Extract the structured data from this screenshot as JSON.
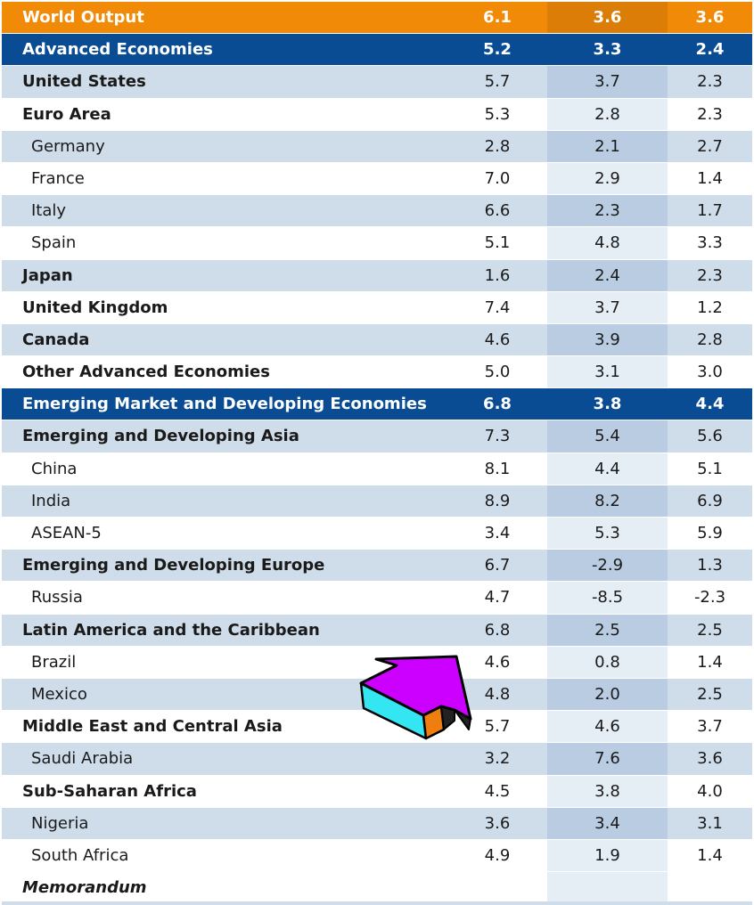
{
  "table": {
    "rows": [
      {
        "name": "World Output",
        "v1": "6.1",
        "v2": "3.6",
        "v3": "3.6",
        "kind": "world"
      },
      {
        "name": "Advanced Economies",
        "v1": "5.2",
        "v2": "3.3",
        "v3": "2.4",
        "kind": "region"
      },
      {
        "name": "United States",
        "v1": "5.7",
        "v2": "3.7",
        "v3": "2.3",
        "kind": "group shade"
      },
      {
        "name": "Euro Area",
        "v1": "5.3",
        "v2": "2.8",
        "v3": "2.3",
        "kind": "group plain"
      },
      {
        "name": "Germany",
        "v1": "2.8",
        "v2": "2.1",
        "v3": "2.7",
        "kind": "indent shade"
      },
      {
        "name": "France",
        "v1": "7.0",
        "v2": "2.9",
        "v3": "1.4",
        "kind": "indent plain"
      },
      {
        "name": "Italy",
        "v1": "6.6",
        "v2": "2.3",
        "v3": "1.7",
        "kind": "indent shade"
      },
      {
        "name": "Spain",
        "v1": "5.1",
        "v2": "4.8",
        "v3": "3.3",
        "kind": "indent plain"
      },
      {
        "name": "Japan",
        "v1": "1.6",
        "v2": "2.4",
        "v3": "2.3",
        "kind": "group shade"
      },
      {
        "name": "United Kingdom",
        "v1": "7.4",
        "v2": "3.7",
        "v3": "1.2",
        "kind": "group plain"
      },
      {
        "name": "Canada",
        "v1": "4.6",
        "v2": "3.9",
        "v3": "2.8",
        "kind": "group shade"
      },
      {
        "name": "Other Advanced Economies",
        "v1": "5.0",
        "v2": "3.1",
        "v3": "3.0",
        "kind": "group plain"
      },
      {
        "name": "Emerging Market and Developing Economies",
        "v1": "6.8",
        "v2": "3.8",
        "v3": "4.4",
        "kind": "region"
      },
      {
        "name": "Emerging and Developing Asia",
        "v1": "7.3",
        "v2": "5.4",
        "v3": "5.6",
        "kind": "group shade"
      },
      {
        "name": "China",
        "v1": "8.1",
        "v2": "4.4",
        "v3": "5.1",
        "kind": "indent plain"
      },
      {
        "name": "India",
        "v1": "8.9",
        "v2": "8.2",
        "v3": "6.9",
        "kind": "indent shade"
      },
      {
        "name": "ASEAN-5",
        "v1": "3.4",
        "v2": "5.3",
        "v3": "5.9",
        "kind": "indent plain"
      },
      {
        "name": "Emerging and Developing Europe",
        "v1": "6.7",
        "v2": "-2.9",
        "v3": "1.3",
        "kind": "group shade"
      },
      {
        "name": "Russia",
        "v1": "4.7",
        "v2": "-8.5",
        "v3": "-2.3",
        "kind": "indent plain"
      },
      {
        "name": "Latin America and the Caribbean",
        "v1": "6.8",
        "v2": "2.5",
        "v3": "2.5",
        "kind": "group shade"
      },
      {
        "name": "Brazil",
        "v1": "4.6",
        "v2": "0.8",
        "v3": "1.4",
        "kind": "indent plain"
      },
      {
        "name": "Mexico",
        "v1": "4.8",
        "v2": "2.0",
        "v3": "2.5",
        "kind": "indent shade"
      },
      {
        "name": "Middle East and Central Asia",
        "v1": "5.7",
        "v2": "4.6",
        "v3": "3.7",
        "kind": "group plain"
      },
      {
        "name": "Saudi Arabia",
        "v1": "3.2",
        "v2": "7.6",
        "v3": "3.6",
        "kind": "indent shade"
      },
      {
        "name": "Sub-Saharan Africa",
        "v1": "4.5",
        "v2": "3.8",
        "v3": "4.0",
        "kind": "group plain"
      },
      {
        "name": "Nigeria",
        "v1": "3.6",
        "v2": "3.4",
        "v3": "3.1",
        "kind": "indent shade"
      },
      {
        "name": "South Africa",
        "v1": "4.9",
        "v2": "1.9",
        "v3": "1.4",
        "kind": "indent plain"
      },
      {
        "name": "Memorandum",
        "v1": "",
        "v2": "",
        "v3": "",
        "kind": "memo"
      }
    ]
  },
  "colors": {
    "world_bar": "#f08a07",
    "region_bar": "#0a4c94",
    "shade_row": "#cfdcea",
    "arrow_face": "#cc00ff",
    "arrow_side_left": "#33e6f2",
    "arrow_side_right": "#f07d10"
  },
  "icons": {
    "pointer": "pointer-arrow-icon"
  }
}
